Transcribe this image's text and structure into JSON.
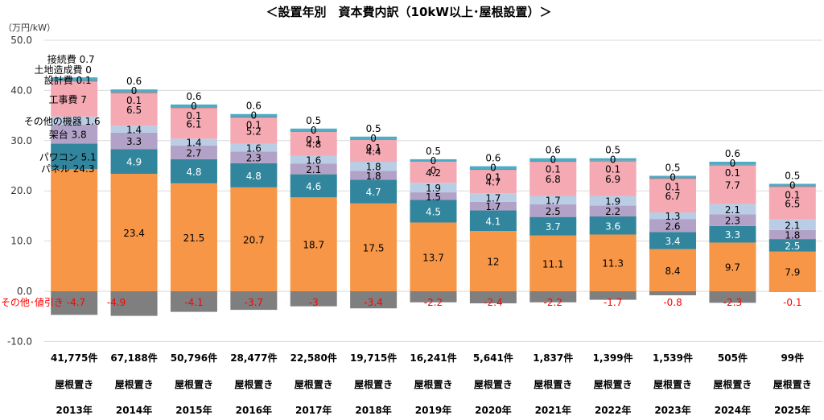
{
  "chart_data": {
    "type": "bar",
    "stacked": true,
    "title": "＜設置年別　資本費内訳（10kW以上･屋根設置）＞",
    "unit_label": "（万円/kW）",
    "ylim": [
      -10,
      50
    ],
    "yticks": [
      "-10.0",
      "0.0",
      "10.0",
      "20.0",
      "30.0",
      "40.0",
      "50.0"
    ],
    "grid": true,
    "categories": [
      "2013年",
      "2014年",
      "2015年",
      "2016年",
      "2017年",
      "2018年",
      "2019年",
      "2020年",
      "2021年",
      "2022年",
      "2023年",
      "2024年",
      "2025年"
    ],
    "counts": [
      "41,775件",
      "67,188件",
      "50,796件",
      "28,477件",
      "22,580件",
      "19,715件",
      "16,241件",
      "5,641件",
      "1,837件",
      "1,399件",
      "1,539件",
      "505件",
      "99件"
    ],
    "mount": [
      "屋根置き",
      "屋根置き",
      "屋根置き",
      "屋根置き",
      "屋根置き",
      "屋根置き",
      "屋根置き",
      "屋根置き",
      "屋根置き",
      "屋根置き",
      "屋根置き",
      "屋根置き",
      "屋根置き"
    ],
    "series": [
      {
        "name": "パネル",
        "color": "#f79646",
        "values": [
          24.3,
          23.4,
          21.5,
          20.7,
          18.7,
          17.5,
          13.7,
          12.0,
          11.1,
          11.3,
          8.4,
          9.7,
          7.9
        ]
      },
      {
        "name": "パワコン",
        "color": "#31859c",
        "values": [
          5.1,
          4.9,
          4.8,
          4.8,
          4.6,
          4.7,
          4.5,
          4.1,
          3.7,
          3.6,
          3.4,
          3.3,
          2.5
        ]
      },
      {
        "name": "架台",
        "color": "#b3a2c7",
        "values": [
          3.8,
          3.3,
          2.7,
          2.3,
          2.1,
          1.8,
          1.5,
          1.7,
          2.5,
          2.2,
          2.6,
          2.3,
          1.8
        ]
      },
      {
        "name": "その他の機器",
        "color": "#b9cde5",
        "values": [
          1.6,
          1.4,
          1.4,
          1.6,
          1.6,
          1.8,
          1.9,
          1.7,
          1.7,
          1.9,
          1.3,
          2.1,
          2.1
        ]
      },
      {
        "name": "工事費",
        "color": "#f4a9b3",
        "values": [
          7.0,
          6.5,
          6.1,
          5.2,
          4.8,
          4.4,
          4.2,
          4.7,
          6.8,
          6.9,
          6.7,
          7.7,
          6.5
        ]
      },
      {
        "name": "設計費",
        "color": "#c0504d",
        "values": [
          0.1,
          0.1,
          0.1,
          0.1,
          0.1,
          0.1,
          0.0,
          0.1,
          0.1,
          0.1,
          0.1,
          0.1,
          0.1
        ]
      },
      {
        "name": "土地造成費",
        "color": "#1f497d",
        "values": [
          0.0,
          0.0,
          0.0,
          0.0,
          0.0,
          0.0,
          0.0,
          0.0,
          0.0,
          0.0,
          0.0,
          0.0,
          0.0
        ]
      },
      {
        "name": "接続費",
        "color": "#4bacc6",
        "values": [
          0.7,
          0.6,
          0.6,
          0.6,
          0.5,
          0.5,
          0.5,
          0.6,
          0.6,
          0.5,
          0.5,
          0.6,
          0.5
        ]
      },
      {
        "name": "その他･値引き",
        "color": "#7f7f7f",
        "values": [
          -4.7,
          -4.9,
          -4.1,
          -3.7,
          -3.0,
          -3.4,
          -2.2,
          -2.4,
          -2.2,
          -1.7,
          -0.8,
          -2.3,
          -0.1
        ]
      }
    ],
    "first_bar_series_labels": [
      "パネル",
      "パワコン",
      "架台",
      "その他の機器",
      "工事費",
      "設計費",
      "土地造成費",
      "接続費",
      "その他･値引き"
    ]
  }
}
